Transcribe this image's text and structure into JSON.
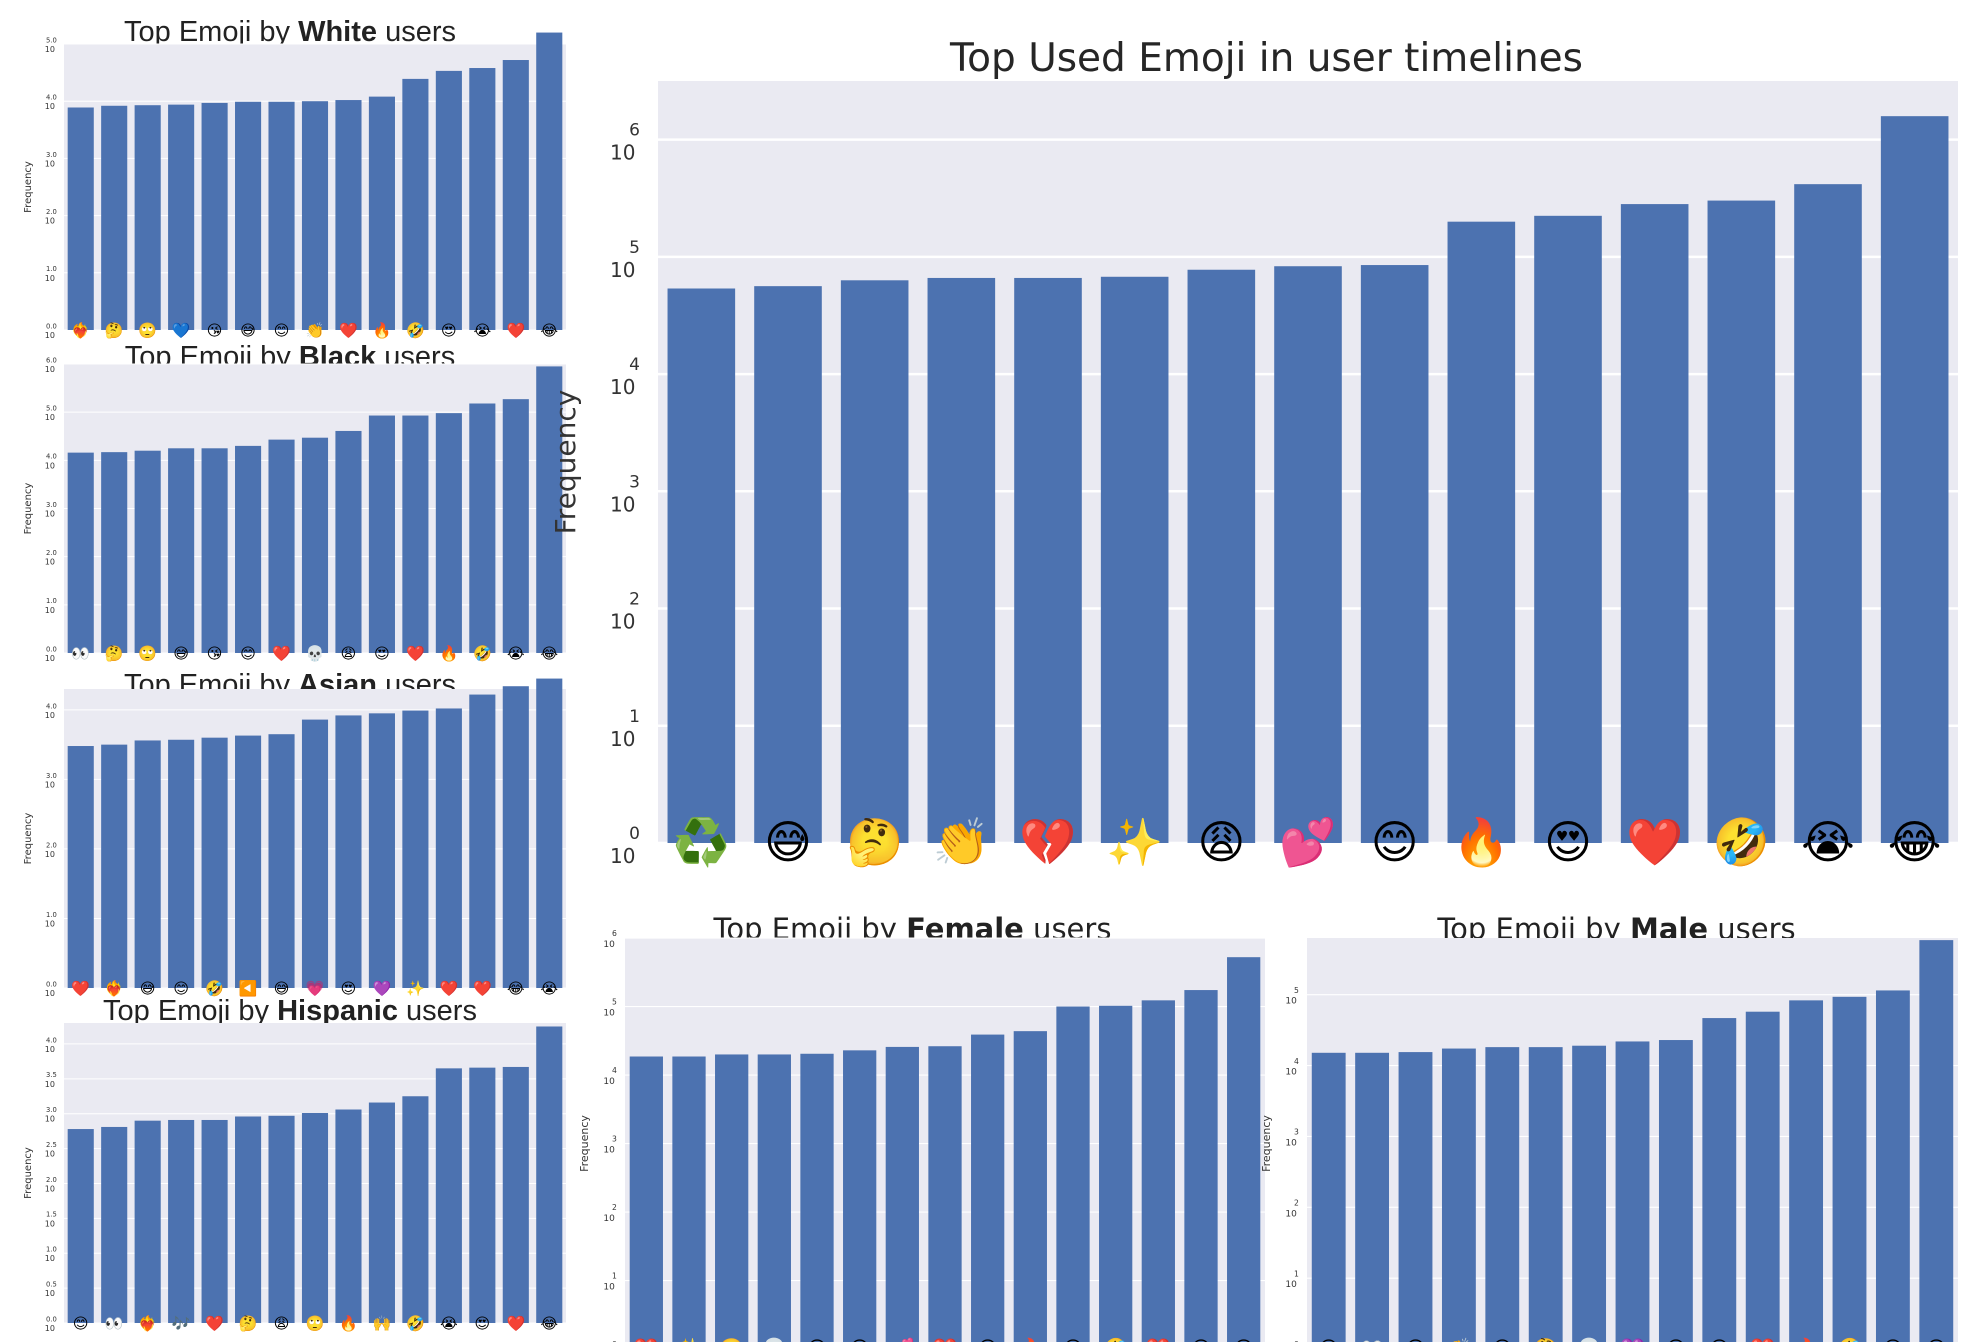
{
  "colors": {
    "bar": "#4c72b0",
    "plot_bg": "#eaeaf2",
    "grid": "#ffffff",
    "text": "#333333"
  },
  "chart_data": [
    {
      "id": "white",
      "type": "bar",
      "title_prefix": "Top Emoji by ",
      "title_bold": "White",
      "title_suffix": " users",
      "ylabel": "Frequency",
      "yscale": "log",
      "ylim": [
        0,
        5.0
      ],
      "yticks": [
        "0.0",
        "1.0",
        "2.0",
        "3.0",
        "4.0",
        "5.0"
      ],
      "tick_base": "10",
      "categories": [
        "❤️‍🔥",
        "🤔",
        "🙄",
        "💙",
        "😘",
        "😅",
        "😊",
        "👏",
        "❤️",
        "🔥",
        "🤣",
        "😍",
        "😭",
        "❤️",
        "😂"
      ],
      "values": [
        3.89,
        3.92,
        3.93,
        3.94,
        3.97,
        3.99,
        3.99,
        4.0,
        4.02,
        4.08,
        4.39,
        4.53,
        4.58,
        4.72,
        5.2
      ]
    },
    {
      "id": "black",
      "type": "bar",
      "title_prefix": "Top Emoji by ",
      "title_bold": "Black",
      "title_suffix": " users",
      "ylabel": "Frequency",
      "yscale": "log",
      "ylim": [
        0,
        6.0
      ],
      "yticks": [
        "0.0",
        "1.0",
        "2.0",
        "3.0",
        "4.0",
        "5.0",
        "6.0"
      ],
      "tick_base": "10",
      "categories": [
        "👀",
        "🤔",
        "🙄",
        "😅",
        "😘",
        "😊",
        "❤️",
        "💀",
        "😩",
        "😍",
        "❤️",
        "🔥",
        "🤣",
        "😭",
        "😂"
      ],
      "values": [
        4.16,
        4.17,
        4.2,
        4.25,
        4.25,
        4.3,
        4.43,
        4.47,
        4.61,
        4.93,
        4.93,
        4.98,
        5.18,
        5.27,
        5.95
      ]
    },
    {
      "id": "asian",
      "type": "bar",
      "title_prefix": "Top Emoji by ",
      "title_bold": "Asian",
      "title_suffix": " users",
      "ylabel": "Frequency",
      "yscale": "log",
      "ylim": [
        0,
        4.3
      ],
      "yticks": [
        "0.0",
        "1.0",
        "2.0",
        "3.0",
        "4.0"
      ],
      "tick_base": "10",
      "categories": [
        "❤️",
        "❤️‍🔥",
        "😅",
        "😊",
        "🤣",
        "◀️",
        "😅",
        "💗",
        "😍",
        "💜",
        "✨",
        "❤️",
        "❤️",
        "😂",
        "😭"
      ],
      "values": [
        3.48,
        3.5,
        3.56,
        3.57,
        3.6,
        3.63,
        3.65,
        3.86,
        3.92,
        3.95,
        3.99,
        4.02,
        4.22,
        4.34,
        4.45
      ]
    },
    {
      "id": "hispanic",
      "type": "bar",
      "title_prefix": "Top Emoji by ",
      "title_bold": "Hispanic",
      "title_suffix": " users",
      "ylabel": "Frequency",
      "yscale": "log",
      "ylim": [
        0,
        4.3
      ],
      "yticks": [
        "0.0",
        "0.5",
        "1.0",
        "1.5",
        "2.0",
        "2.5",
        "3.0",
        "3.5",
        "4.0"
      ],
      "tick_base": "10",
      "categories": [
        "😊",
        "👀",
        "❤️‍🔥",
        "🎶",
        "❤️",
        "🤔",
        "😩",
        "🙄",
        "🔥",
        "🙌",
        "🤣",
        "😭",
        "😍",
        "❤️",
        "😂"
      ],
      "values": [
        2.78,
        2.81,
        2.9,
        2.91,
        2.91,
        2.96,
        2.97,
        3.01,
        3.06,
        3.16,
        3.25,
        3.65,
        3.66,
        3.67,
        4.25
      ]
    },
    {
      "id": "overall",
      "type": "bar",
      "title": "Top Used Emoji in user timelines",
      "ylabel": "Frequency",
      "yscale": "log",
      "ylim": [
        0,
        6.5
      ],
      "yticks": [
        "0",
        "1",
        "2",
        "3",
        "4",
        "5",
        "6"
      ],
      "tick_base": "10",
      "categories": [
        "♻️",
        "😅",
        "🤔",
        "👏",
        "💔",
        "✨",
        "😩",
        "💕",
        "😊",
        "🔥",
        "😍",
        "❤️",
        "🤣",
        "😭",
        "😂"
      ],
      "values": [
        4.73,
        4.75,
        4.8,
        4.82,
        4.82,
        4.83,
        4.89,
        4.92,
        4.93,
        5.3,
        5.35,
        5.45,
        5.48,
        5.62,
        6.2
      ]
    },
    {
      "id": "female",
      "type": "bar",
      "title_prefix": "Top Emoji by ",
      "title_bold": "Female",
      "title_suffix": " users",
      "ylabel": "Frequency",
      "yscale": "log",
      "ylim": [
        0,
        6.0
      ],
      "yticks": [
        "0",
        "1",
        "2",
        "3",
        "4",
        "5",
        "6"
      ],
      "tick_base": "10",
      "categories": [
        "❤️",
        "✨",
        "🙄",
        "💀",
        "😘",
        "😊",
        "💕",
        "💔",
        "😩",
        "🔥",
        "😍",
        "🤣",
        "❤️",
        "😭",
        "😂"
      ],
      "values": [
        4.27,
        4.27,
        4.3,
        4.3,
        4.31,
        4.36,
        4.41,
        4.42,
        4.59,
        4.64,
        5.0,
        5.01,
        5.09,
        5.24,
        5.72
      ]
    },
    {
      "id": "male",
      "type": "bar",
      "title_prefix": "Top Emoji by ",
      "title_bold": "Male",
      "title_suffix": " users",
      "ylabel": "Frequency",
      "yscale": "log",
      "ylim": [
        0,
        5.8
      ],
      "yticks": [
        "0",
        "1",
        "2",
        "3",
        "4",
        "5"
      ],
      "tick_base": "10",
      "categories": [
        "😄",
        "👀",
        "😩",
        "👏",
        "😊",
        "🤔",
        "💀",
        "💜",
        "😅",
        "😍",
        "❤️",
        "🔥",
        "🤣",
        "😭",
        "😂"
      ],
      "values": [
        4.18,
        4.18,
        4.19,
        4.24,
        4.26,
        4.26,
        4.28,
        4.34,
        4.36,
        4.67,
        4.76,
        4.92,
        4.97,
        5.06,
        5.77
      ]
    }
  ]
}
